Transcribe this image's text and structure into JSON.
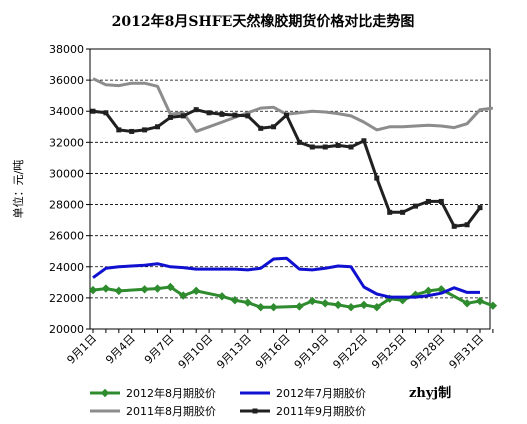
{
  "chart_data": {
    "type": "line",
    "title": "2012年8月SHFE天然橡胶期货价格对比走势图",
    "ylabel": "单位：元/吨",
    "xlabel": "",
    "ylim": [
      20000,
      38000
    ],
    "yticks": [
      20000,
      22000,
      24000,
      26000,
      28000,
      30000,
      32000,
      34000,
      36000,
      38000
    ],
    "ytick_labels": [
      "20000",
      "22000",
      "24000",
      "26000",
      "28000",
      "30000",
      "32000",
      "34000",
      "36000",
      "38000"
    ],
    "xlim": [
      1,
      32
    ],
    "xticks": [
      1,
      4,
      7,
      10,
      13,
      16,
      19,
      22,
      25,
      28,
      31
    ],
    "xtick_labels": [
      "9月1日",
      "9月4日",
      "9月7日",
      "9月10日",
      "9月13日",
      "9月16日",
      "9月19日",
      "9月22日",
      "9月25日",
      "9月28日",
      "9月31日"
    ],
    "grid": "horizontal-dashed",
    "legend_position": "bottom",
    "signature": "zhyj制",
    "series": [
      {
        "name": "2012年8月期胶价",
        "color": "#2e8b2e",
        "marker": "diamond",
        "x": [
          1,
          2,
          3,
          5,
          6,
          7,
          8,
          9,
          11,
          12,
          13,
          14,
          15,
          17,
          18,
          19,
          20,
          21,
          22,
          23,
          24,
          25,
          26,
          27,
          28,
          30,
          31,
          32
        ],
        "y": [
          22500,
          22600,
          22450,
          22550,
          22600,
          22700,
          22150,
          22450,
          22100,
          21850,
          21700,
          21400,
          21400,
          21450,
          21800,
          21650,
          21550,
          21400,
          21550,
          21400,
          21950,
          21850,
          22200,
          22450,
          22550,
          21650,
          21800,
          21500
        ]
      },
      {
        "name": "2012年7月期胶价",
        "color": "#1010d0",
        "marker": "none",
        "x": [
          1,
          2,
          3,
          5,
          6,
          7,
          8,
          9,
          11,
          12,
          13,
          14,
          15,
          16,
          17,
          18,
          19,
          20,
          21,
          22,
          23,
          24,
          25,
          26,
          27,
          28,
          29,
          30,
          31
        ],
        "y": [
          23300,
          23900,
          24000,
          24100,
          24200,
          24000,
          23950,
          23850,
          23850,
          23850,
          23800,
          23900,
          24500,
          24550,
          23850,
          23800,
          23900,
          24050,
          24000,
          22700,
          22250,
          22050,
          22050,
          22050,
          22150,
          22300,
          22650,
          22350,
          22350
        ]
      },
      {
        "name": "2011年8月期胶价",
        "color": "#8c8c8c",
        "marker": "none",
        "x": [
          1,
          2,
          3,
          4,
          5,
          6,
          7,
          8,
          9,
          10,
          11,
          12,
          13,
          14,
          15,
          16,
          17,
          18,
          19,
          20,
          21,
          22,
          23,
          24,
          25,
          26,
          27,
          28,
          29,
          30,
          31,
          32
        ],
        "y": [
          36100,
          35700,
          35650,
          35800,
          35800,
          35600,
          33800,
          33900,
          32700,
          33000,
          33300,
          33600,
          33900,
          34200,
          34250,
          33800,
          33900,
          34000,
          33950,
          33850,
          33700,
          33300,
          32800,
          33000,
          33000,
          33050,
          33100,
          33050,
          32950,
          33200,
          34100,
          34200
        ]
      },
      {
        "name": "2011年9月期胶价",
        "color": "#202020",
        "marker": "square",
        "x": [
          1,
          2,
          3,
          4,
          5,
          6,
          7,
          8,
          9,
          10,
          11,
          12,
          13,
          14,
          15,
          16,
          17,
          18,
          19,
          20,
          21,
          22,
          23,
          24,
          25,
          26,
          27,
          28,
          29,
          30,
          31
        ],
        "y": [
          34000,
          33900,
          32800,
          32700,
          32800,
          33000,
          33600,
          33700,
          34100,
          33900,
          33800,
          33750,
          33700,
          32900,
          33000,
          33750,
          32000,
          31700,
          31700,
          31800,
          31700,
          32100,
          29700,
          27500,
          27500,
          27900,
          28200,
          28200,
          26600,
          26700,
          27800
        ]
      }
    ]
  }
}
